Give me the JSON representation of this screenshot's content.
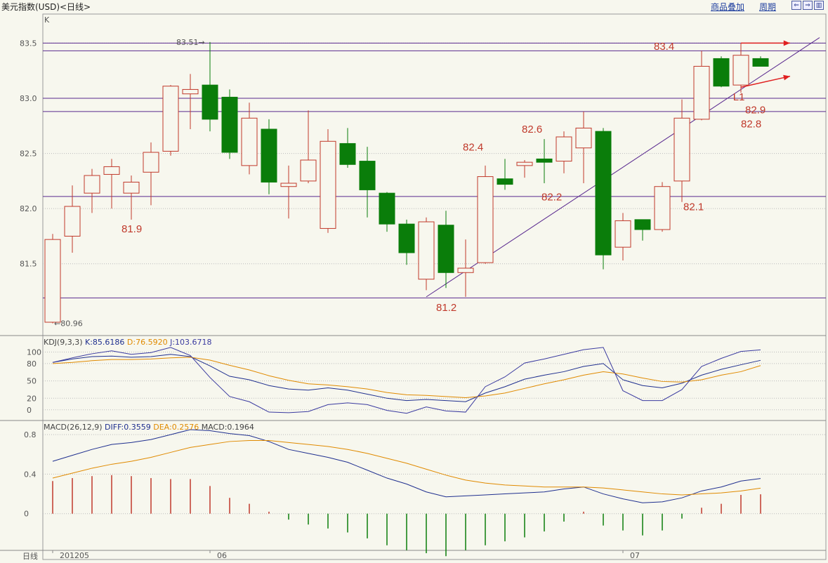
{
  "header": {
    "title": "美元指数(USD)<日线>",
    "links": [
      "商品叠加",
      "周期"
    ],
    "nav_icons": [
      "scroll-left-icon",
      "scroll-right-icon",
      "layout-icon"
    ]
  },
  "colors": {
    "up": "#c0392b",
    "down": "#0a7d0a",
    "line": "#5a2a8f",
    "k": "#1f2f8f",
    "d": "#e08a00",
    "j": "#3a3aa0",
    "arrow": "#e02020"
  },
  "chart_data": [
    {
      "type": "candlestick",
      "title": "K",
      "ylim": [
        80.9,
        83.7
      ],
      "yticks": [
        81.5,
        82.0,
        82.5,
        83.0,
        83.5
      ],
      "x_labels": [
        {
          "index": 0,
          "label": "201205"
        },
        {
          "index": 8,
          "label": "06"
        },
        {
          "index": 29,
          "label": "07"
        }
      ],
      "bottom_label": "日线",
      "candles": [
        {
          "o": 80.97,
          "h": 81.77,
          "l": 80.96,
          "c": 81.72
        },
        {
          "o": 81.75,
          "h": 82.21,
          "l": 81.6,
          "c": 82.02
        },
        {
          "o": 82.14,
          "h": 82.36,
          "l": 81.96,
          "c": 82.3
        },
        {
          "o": 82.31,
          "h": 82.45,
          "l": 82.0,
          "c": 82.38
        },
        {
          "o": 82.14,
          "h": 82.3,
          "l": 81.9,
          "c": 82.24
        },
        {
          "o": 82.33,
          "h": 82.6,
          "l": 82.03,
          "c": 82.51
        },
        {
          "o": 82.52,
          "h": 83.12,
          "l": 82.48,
          "c": 83.11
        },
        {
          "o": 83.04,
          "h": 83.22,
          "l": 82.72,
          "c": 83.08
        },
        {
          "o": 83.12,
          "h": 83.51,
          "l": 82.7,
          "c": 82.81
        },
        {
          "o": 83.01,
          "h": 83.08,
          "l": 82.45,
          "c": 82.51
        },
        {
          "o": 82.39,
          "h": 82.96,
          "l": 82.31,
          "c": 82.82
        },
        {
          "o": 82.72,
          "h": 82.81,
          "l": 82.13,
          "c": 82.24
        },
        {
          "o": 82.2,
          "h": 82.39,
          "l": 81.91,
          "c": 82.23
        },
        {
          "o": 82.25,
          "h": 82.89,
          "l": 82.23,
          "c": 82.44
        },
        {
          "o": 81.82,
          "h": 82.72,
          "l": 81.78,
          "c": 82.61
        },
        {
          "o": 82.59,
          "h": 82.73,
          "l": 82.37,
          "c": 82.4
        },
        {
          "o": 82.43,
          "h": 82.56,
          "l": 81.92,
          "c": 82.17
        },
        {
          "o": 82.14,
          "h": 82.15,
          "l": 81.79,
          "c": 81.86
        },
        {
          "o": 81.86,
          "h": 81.9,
          "l": 81.49,
          "c": 81.6
        },
        {
          "o": 81.36,
          "h": 81.92,
          "l": 81.26,
          "c": 81.88
        },
        {
          "o": 81.85,
          "h": 81.98,
          "l": 81.28,
          "c": 81.42
        },
        {
          "o": 81.42,
          "h": 81.72,
          "l": 81.2,
          "c": 81.46
        },
        {
          "o": 81.51,
          "h": 82.39,
          "l": 81.5,
          "c": 82.29
        },
        {
          "o": 82.27,
          "h": 82.45,
          "l": 82.17,
          "c": 82.22
        },
        {
          "o": 82.39,
          "h": 82.44,
          "l": 82.28,
          "c": 82.42
        },
        {
          "o": 82.45,
          "h": 82.63,
          "l": 82.23,
          "c": 82.42
        },
        {
          "o": 82.43,
          "h": 82.7,
          "l": 82.32,
          "c": 82.65
        },
        {
          "o": 82.55,
          "h": 82.88,
          "l": 82.23,
          "c": 82.73
        },
        {
          "o": 82.7,
          "h": 82.73,
          "l": 81.45,
          "c": 81.58
        },
        {
          "o": 81.65,
          "h": 81.96,
          "l": 81.53,
          "c": 81.89
        },
        {
          "o": 81.9,
          "h": 81.9,
          "l": 81.71,
          "c": 81.81
        },
        {
          "o": 81.81,
          "h": 82.24,
          "l": 81.79,
          "c": 82.2
        },
        {
          "o": 82.25,
          "h": 82.99,
          "l": 82.06,
          "c": 82.82
        },
        {
          "o": 82.81,
          "h": 83.43,
          "l": 82.8,
          "c": 83.29
        },
        {
          "o": 83.36,
          "h": 83.38,
          "l": 83.1,
          "c": 83.11
        },
        {
          "o": 83.12,
          "h": 83.5,
          "l": 83.05,
          "c": 83.39
        },
        {
          "o": 83.36,
          "h": 83.38,
          "l": 83.29,
          "c": 83.29
        }
      ],
      "hlines": [
        83.5,
        83.43,
        83.0,
        82.88,
        82.11,
        81.19
      ],
      "trendline": {
        "from": [
          19,
          81.2
        ],
        "to": [
          39,
          83.55
        ],
        "label": "L1"
      },
      "extremes": [
        {
          "text": "83.51",
          "index": 8,
          "value": 83.51
        },
        {
          "text": "80.96",
          "index": 0,
          "value": 80.96
        }
      ],
      "annotations": [
        {
          "text": "81.9",
          "index": 4,
          "value": 81.9
        },
        {
          "text": "81.2",
          "index": 20,
          "value": 81.2
        },
        {
          "text": "82.4",
          "index": 22,
          "value": 82.4
        },
        {
          "text": "82.6",
          "index": 25,
          "value": 82.6
        },
        {
          "text": "82.2",
          "index": 26,
          "value": 82.2
        },
        {
          "text": "82.1",
          "index": 33,
          "value": 82.1
        },
        {
          "text": "83.4",
          "index": 32,
          "value": 83.4
        },
        {
          "text": "82.8",
          "index": 35,
          "value": 82.8
        },
        {
          "text": "82.9",
          "index": 36,
          "value": 82.9
        }
      ],
      "arrows": [
        {
          "from": [
            35,
            83.5
          ],
          "to": [
            37.5,
            83.5
          ]
        },
        {
          "from": [
            35,
            83.1
          ],
          "to": [
            37.5,
            83.2
          ]
        }
      ]
    },
    {
      "type": "line",
      "title": "KDJ(9,3,3)",
      "ylim": [
        -10,
        120
      ],
      "yticks": [
        0,
        20,
        50,
        80,
        100
      ],
      "series": [
        {
          "name": "K",
          "last": "K:85.6186",
          "values": [
            82,
            88,
            92,
            93,
            91,
            92,
            96,
            92,
            76,
            58,
            52,
            42,
            36,
            34,
            38,
            34,
            27,
            20,
            16,
            18,
            16,
            14,
            29,
            40,
            53,
            60,
            66,
            75,
            80,
            52,
            42,
            38,
            46,
            60,
            70,
            78,
            85.6
          ]
        },
        {
          "name": "D",
          "last": "D:76.5920",
          "values": [
            80,
            82,
            85,
            87,
            87,
            88,
            90,
            91,
            86,
            77,
            69,
            59,
            51,
            45,
            43,
            40,
            36,
            30,
            26,
            25,
            23,
            21,
            24,
            29,
            37,
            45,
            52,
            60,
            66,
            62,
            55,
            49,
            48,
            52,
            60,
            66,
            76.6
          ]
        },
        {
          "name": "J",
          "last": "J:103.6718",
          "values": [
            82,
            90,
            97,
            102,
            96,
            99,
            108,
            94,
            56,
            23,
            14,
            -4,
            -5,
            -3,
            9,
            12,
            9,
            -1,
            -6,
            5,
            -2,
            -4,
            40,
            57,
            81,
            88,
            96,
            104,
            108,
            33,
            16,
            16,
            35,
            75,
            89,
            101,
            103.7
          ]
        }
      ]
    },
    {
      "type": "bar+line",
      "title": "MACD(26,12,9)",
      "ylim": [
        -0.35,
        0.9
      ],
      "yticks": [
        0,
        0.4,
        0.8
      ],
      "series": [
        {
          "name": "DIFF",
          "last": "DIFF:0.3559",
          "values": [
            0.53,
            0.59,
            0.65,
            0.7,
            0.72,
            0.75,
            0.8,
            0.85,
            0.84,
            0.81,
            0.79,
            0.73,
            0.65,
            0.61,
            0.57,
            0.52,
            0.44,
            0.36,
            0.3,
            0.22,
            0.17,
            0.18,
            0.19,
            0.2,
            0.21,
            0.22,
            0.25,
            0.27,
            0.2,
            0.15,
            0.11,
            0.12,
            0.16,
            0.23,
            0.27,
            0.33,
            0.356
          ]
        },
        {
          "name": "DEA",
          "last": "DEA:0.2576",
          "values": [
            0.36,
            0.41,
            0.46,
            0.5,
            0.53,
            0.57,
            0.62,
            0.67,
            0.7,
            0.73,
            0.74,
            0.74,
            0.72,
            0.7,
            0.68,
            0.65,
            0.61,
            0.56,
            0.51,
            0.45,
            0.39,
            0.34,
            0.31,
            0.29,
            0.28,
            0.27,
            0.27,
            0.27,
            0.26,
            0.24,
            0.22,
            0.2,
            0.19,
            0.2,
            0.21,
            0.23,
            0.258
          ]
        },
        {
          "name": "MACD",
          "last": "MACD:0.1964",
          "values": [
            0.33,
            0.36,
            0.38,
            0.39,
            0.38,
            0.36,
            0.35,
            0.35,
            0.28,
            0.16,
            0.1,
            0.02,
            -0.06,
            -0.11,
            -0.15,
            -0.19,
            -0.25,
            -0.32,
            -0.37,
            -0.4,
            -0.43,
            -0.37,
            -0.32,
            -0.28,
            -0.24,
            -0.18,
            -0.08,
            0.02,
            -0.12,
            -0.17,
            -0.22,
            -0.17,
            -0.05,
            0.06,
            0.1,
            0.19,
            0.196
          ]
        }
      ]
    }
  ]
}
